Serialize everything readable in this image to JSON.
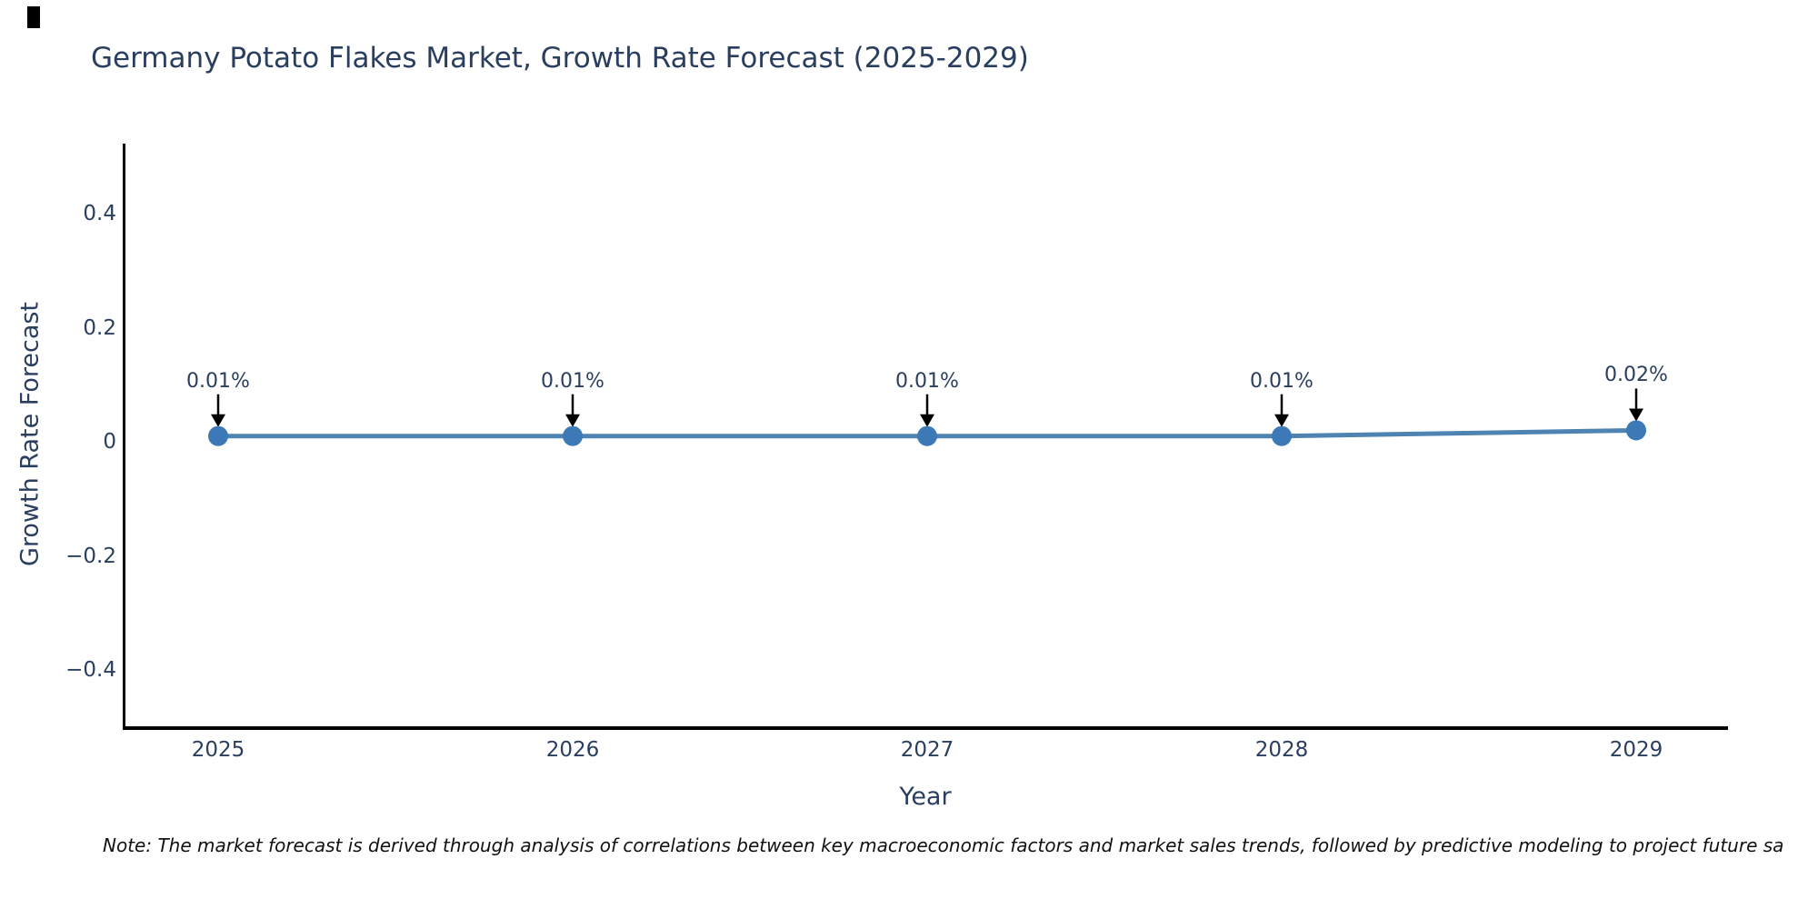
{
  "title": "Germany Potato Flakes Market, Growth Rate Forecast (2025-2029)",
  "note": "Note: The market forecast is derived through analysis of correlations between key macroeconomic factors and market sales trends, followed by predictive modeling to project future sa",
  "colors": {
    "text": "#2a3f5f",
    "axis": "#000000",
    "line": "#4f84b2",
    "marker": "#3c79b6",
    "arrow": "#000000",
    "note_text": "#111111",
    "background": "#ffffff"
  },
  "chart_data": {
    "type": "line",
    "title": "Germany Potato Flakes Market, Growth Rate Forecast (2025-2029)",
    "xlabel": "Year",
    "ylabel": "Growth Rate Forecast",
    "x": [
      2025,
      2026,
      2027,
      2028,
      2029
    ],
    "series": [
      {
        "name": "Growth Rate Forecast",
        "values": [
          0.01,
          0.01,
          0.01,
          0.01,
          0.02
        ]
      }
    ],
    "point_labels": [
      "0.01%",
      "0.01%",
      "0.01%",
      "0.01%",
      "0.02%"
    ],
    "yticks": [
      0.4,
      0.2,
      0,
      -0.2,
      -0.4
    ],
    "ytick_labels": [
      "0.4",
      "0.2",
      "0",
      "−0.2",
      "−0.4"
    ],
    "xtick_labels": [
      "2025",
      "2026",
      "2027",
      "2028",
      "2029"
    ],
    "ylim": [
      -0.5,
      0.52
    ],
    "grid": false,
    "legend": "none",
    "marker_style": "circle",
    "annotation_arrows": true
  }
}
